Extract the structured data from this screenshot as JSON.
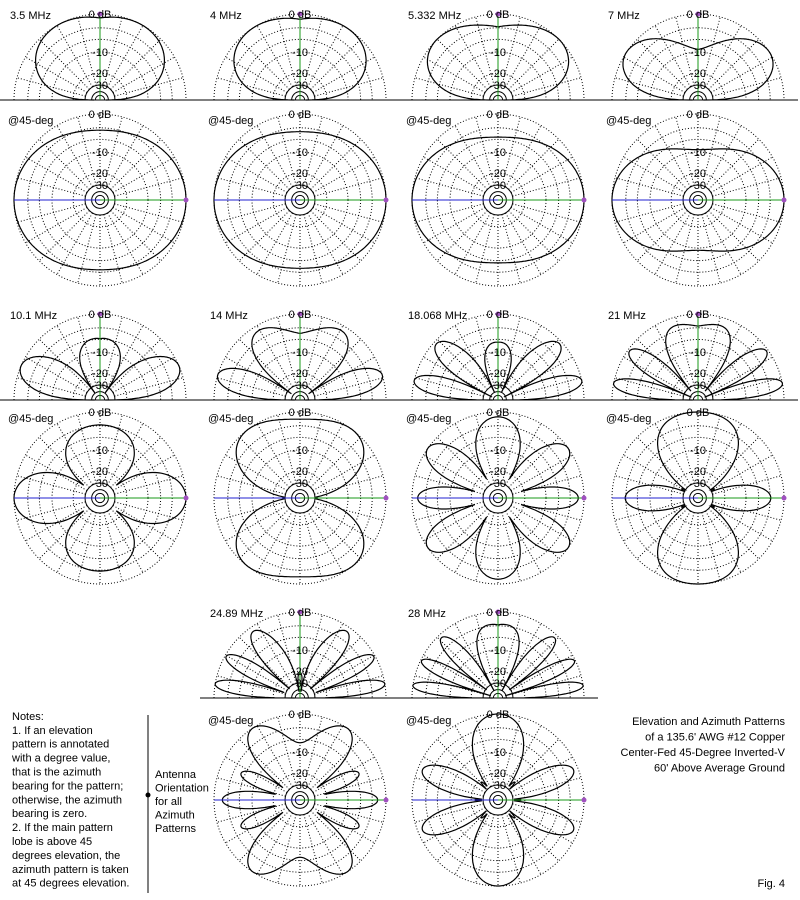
{
  "panels": [
    {
      "frequency": "3.5 MHz",
      "elevation": {
        "ring_labels": [
          "0 dB",
          "-10",
          "-20",
          "-30"
        ]
      },
      "azimuth": {
        "label": "@45-deg",
        "ring_labels": [
          "0 dB",
          "-10",
          "-20",
          "-30"
        ]
      }
    },
    {
      "frequency": "4 MHz",
      "elevation": {
        "ring_labels": [
          "0 dB",
          "-10",
          "-20",
          "-30"
        ]
      },
      "azimuth": {
        "label": "@45-deg",
        "ring_labels": [
          "0 dB",
          "-10",
          "-20",
          "-30"
        ]
      }
    },
    {
      "frequency": "5.332 MHz",
      "elevation": {
        "ring_labels": [
          "0 dB",
          "-10",
          "-20",
          "-30"
        ]
      },
      "azimuth": {
        "label": "@45-deg",
        "ring_labels": [
          "0 dB",
          "-10",
          "-20",
          "-30"
        ]
      }
    },
    {
      "frequency": "7 MHz",
      "elevation": {
        "ring_labels": [
          "0 dB",
          "-10",
          "-20",
          "-30"
        ]
      },
      "azimuth": {
        "label": "@45-deg",
        "ring_labels": [
          "0 dB",
          "-10",
          "-20",
          "-30"
        ]
      }
    },
    {
      "frequency": "10.1 MHz",
      "elevation": {
        "ring_labels": [
          "0 dB",
          "-10",
          "-20",
          "-30"
        ]
      },
      "azimuth": {
        "label": "@45-deg",
        "ring_labels": [
          "0 dB",
          "-10",
          "-20",
          "-30"
        ]
      }
    },
    {
      "frequency": "14 MHz",
      "elevation": {
        "ring_labels": [
          "0 dB",
          "-10",
          "-20",
          "-30"
        ]
      },
      "azimuth": {
        "label": "@45-deg",
        "ring_labels": [
          "0 dB",
          "-10",
          "-20",
          "-30"
        ]
      }
    },
    {
      "frequency": "18.068 MHz",
      "elevation": {
        "ring_labels": [
          "0 dB",
          "-10",
          "-20",
          "-30"
        ]
      },
      "azimuth": {
        "label": "@45-deg",
        "ring_labels": [
          "0 dB",
          "-10",
          "-20",
          "-30"
        ]
      }
    },
    {
      "frequency": "21 MHz",
      "elevation": {
        "ring_labels": [
          "0 dB",
          "-10",
          "-20",
          "-30"
        ]
      },
      "azimuth": {
        "label": "@45-deg",
        "ring_labels": [
          "0 dB",
          "-10",
          "-20",
          "-30"
        ]
      }
    },
    {
      "frequency": "24.89 MHz",
      "elevation": {
        "ring_labels": [
          "0 dB",
          "-10",
          "-20",
          "-30"
        ]
      },
      "azimuth": {
        "label": "@45-deg",
        "ring_labels": [
          "0 dB",
          "-10",
          "-20",
          "-30"
        ]
      }
    },
    {
      "frequency": "28 MHz",
      "elevation": {
        "ring_labels": [
          "0 dB",
          "-10",
          "-20",
          "-30"
        ]
      },
      "azimuth": {
        "label": "@45-deg",
        "ring_labels": [
          "0 dB",
          "-10",
          "-20",
          "-30"
        ]
      }
    }
  ],
  "notes": [
    "Notes:",
    "1.  If an elevation",
    "pattern is annotated",
    "with a degree value,",
    "that is the azimuth",
    "bearing for the pattern;",
    "otherwise, the azimuth",
    "bearing is zero.",
    "2.  If the main pattern",
    "lobe is above 45",
    "degrees elevation, the",
    "azimuth pattern is taken",
    "at 45 degrees elevation."
  ],
  "orientation_label": [
    "Antenna",
    "Orientation",
    "for all",
    "Azimuth",
    "Patterns"
  ],
  "caption": [
    "Elevation and Azimuth Patterns",
    "of a 135.6' AWG #12 Copper",
    "Center-Fed 45-Degree Inverted-V",
    "60' Above Average Ground"
  ],
  "figure_label": "Fig. 4"
}
